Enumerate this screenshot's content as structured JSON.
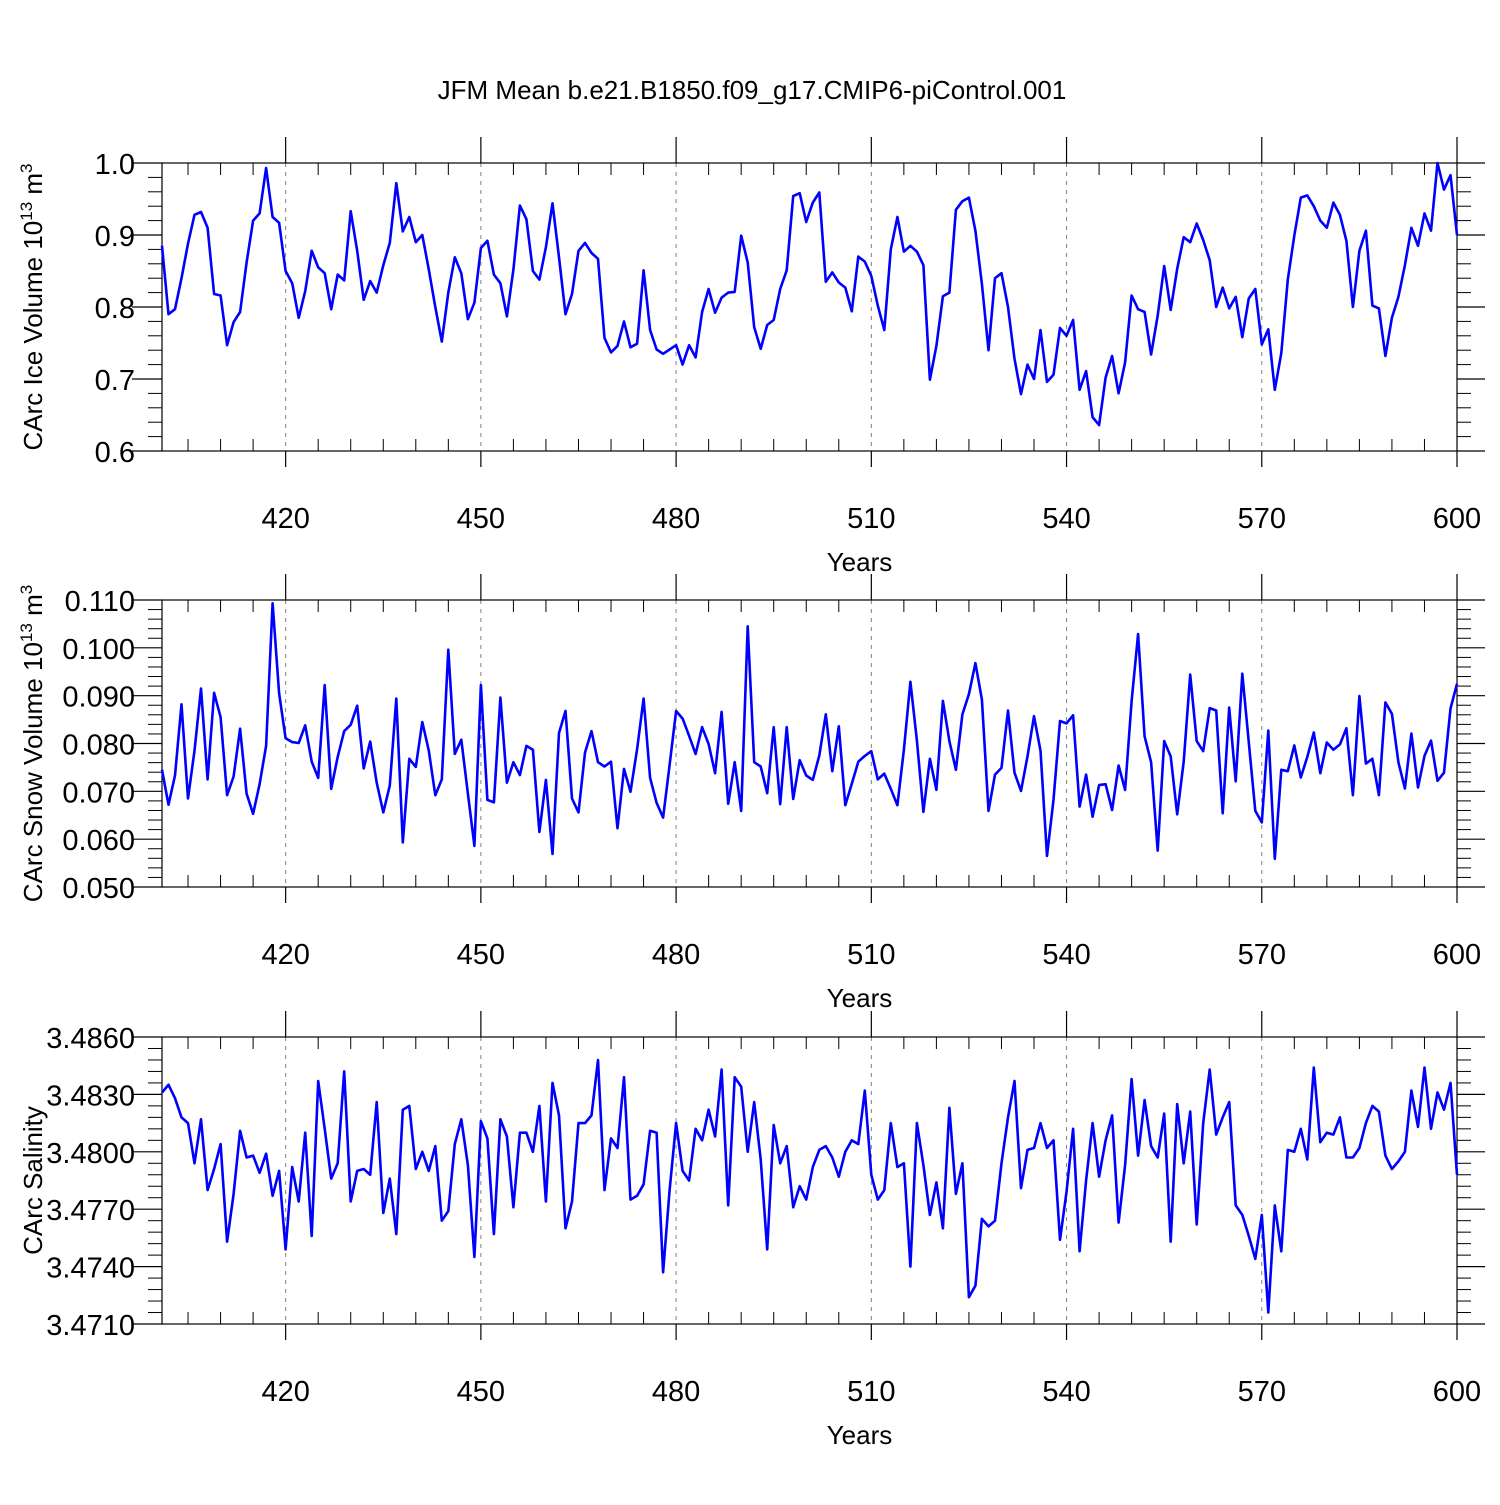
{
  "figure": {
    "title": "JFM Mean b.e21.B1850.f09_g17.CMIP6-piControl.001"
  },
  "style": {
    "line_color": "#0000ff",
    "axis_color": "#000000",
    "grid_color": "#808080"
  },
  "chart_data": [
    {
      "type": "line",
      "title": "",
      "xlabel": "Years",
      "ylabel": "CArc Ice Volume 10",
      "ylabel_sup": "13",
      "ylabel_units": " m",
      "ylabel_units_sup": "3",
      "xlim": [
        401,
        600
      ],
      "xticks": [
        420,
        450,
        480,
        510,
        540,
        570,
        600
      ],
      "xtick_labels": [
        "420",
        "450",
        "480",
        "510",
        "540",
        "570",
        "600"
      ],
      "ylim": [
        0.6,
        1.0
      ],
      "yticks": [
        0.6,
        0.7,
        0.8,
        0.9,
        1.0
      ],
      "ytick_labels": [
        "0.6",
        "0.7",
        "0.8",
        "0.9",
        "1.0"
      ],
      "grid": "vertical dashed at x ticks",
      "series": [
        {
          "name": "CArc Ice Volume",
          "x_start": 401,
          "x_step": 1,
          "values": [
            0.885,
            0.79,
            0.797,
            0.84,
            0.888,
            0.928,
            0.932,
            0.91,
            0.818,
            0.816,
            0.747,
            0.779,
            0.793,
            0.862,
            0.92,
            0.93,
            0.993,
            0.925,
            0.917,
            0.85,
            0.833,
            0.785,
            0.822,
            0.878,
            0.855,
            0.847,
            0.797,
            0.845,
            0.837,
            0.933,
            0.878,
            0.81,
            0.836,
            0.82,
            0.858,
            0.889,
            0.972,
            0.905,
            0.925,
            0.89,
            0.9,
            0.852,
            0.8,
            0.752,
            0.82,
            0.869,
            0.847,
            0.783,
            0.806,
            0.882,
            0.892,
            0.845,
            0.833,
            0.787,
            0.852,
            0.941,
            0.922,
            0.85,
            0.838,
            0.883,
            0.944,
            0.869,
            0.79,
            0.818,
            0.878,
            0.889,
            0.875,
            0.867,
            0.757,
            0.737,
            0.746,
            0.78,
            0.744,
            0.749,
            0.851,
            0.768,
            0.741,
            0.735,
            0.741,
            0.747,
            0.72,
            0.747,
            0.73,
            0.793,
            0.825,
            0.792,
            0.813,
            0.82,
            0.821,
            0.899,
            0.862,
            0.772,
            0.742,
            0.775,
            0.782,
            0.825,
            0.851,
            0.954,
            0.958,
            0.918,
            0.945,
            0.959,
            0.835,
            0.848,
            0.834,
            0.827,
            0.794,
            0.87,
            0.863,
            0.843,
            0.802,
            0.768,
            0.88,
            0.925,
            0.877,
            0.885,
            0.877,
            0.858,
            0.699,
            0.746,
            0.815,
            0.82,
            0.935,
            0.947,
            0.952,
            0.906,
            0.832,
            0.74,
            0.84,
            0.847,
            0.8,
            0.728,
            0.679,
            0.72,
            0.7,
            0.768,
            0.696,
            0.706,
            0.771,
            0.76,
            0.782,
            0.685,
            0.711,
            0.647,
            0.636,
            0.702,
            0.732,
            0.68,
            0.723,
            0.816,
            0.797,
            0.793,
            0.734,
            0.788,
            0.857,
            0.796,
            0.853,
            0.897,
            0.89,
            0.916,
            0.893,
            0.865,
            0.8,
            0.827,
            0.798,
            0.814,
            0.758,
            0.812,
            0.825,
            0.748,
            0.769,
            0.685,
            0.736,
            0.838,
            0.899,
            0.952,
            0.955,
            0.94,
            0.92,
            0.91,
            0.945,
            0.928,
            0.892,
            0.8,
            0.878,
            0.906,
            0.802,
            0.798,
            0.732,
            0.785,
            0.814,
            0.858,
            0.91,
            0.885,
            0.93,
            0.906,
            1.0,
            0.963,
            0.983,
            0.9
          ]
        }
      ]
    },
    {
      "type": "line",
      "title": "",
      "xlabel": "Years",
      "ylabel": "CArc Snow Volume 10",
      "ylabel_sup": "13",
      "ylabel_units": " m",
      "ylabel_units_sup": "3",
      "xlim": [
        401,
        600
      ],
      "xticks": [
        420,
        450,
        480,
        510,
        540,
        570,
        600
      ],
      "xtick_labels": [
        "420",
        "450",
        "480",
        "510",
        "540",
        "570",
        "600"
      ],
      "ylim": [
        0.05,
        0.11
      ],
      "yticks": [
        0.05,
        0.06,
        0.07,
        0.08,
        0.09,
        0.1,
        0.11
      ],
      "ytick_labels": [
        "0.050",
        "0.060",
        "0.070",
        "0.080",
        "0.090",
        "0.100",
        "0.110"
      ],
      "grid": "vertical dashed at x ticks",
      "series": [
        {
          "name": "CArc Snow Volume",
          "x_start": 401,
          "x_step": 1,
          "values": [
            0.0745,
            0.0672,
            0.0733,
            0.0882,
            0.0685,
            0.0785,
            0.0915,
            0.0725,
            0.0906,
            0.0855,
            0.0692,
            0.0731,
            0.0831,
            0.0695,
            0.0653,
            0.0715,
            0.0795,
            0.1093,
            0.0905,
            0.0811,
            0.0803,
            0.0801,
            0.0838,
            0.0762,
            0.0728,
            0.0922,
            0.0705,
            0.0772,
            0.0826,
            0.0839,
            0.0879,
            0.0748,
            0.0804,
            0.0718,
            0.0656,
            0.0712,
            0.0894,
            0.0593,
            0.0768,
            0.0751,
            0.0845,
            0.0785,
            0.0692,
            0.0725,
            0.0996,
            0.0778,
            0.0808,
            0.0695,
            0.0586,
            0.0922,
            0.0682,
            0.0677,
            0.0896,
            0.0718,
            0.0761,
            0.0734,
            0.0795,
            0.0787,
            0.0615,
            0.0724,
            0.0569,
            0.0822,
            0.0868,
            0.0685,
            0.0656,
            0.0781,
            0.0826,
            0.0761,
            0.0752,
            0.0762,
            0.0623,
            0.0747,
            0.0699,
            0.0788,
            0.0894,
            0.0728,
            0.0676,
            0.0645,
            0.0755,
            0.0868,
            0.0852,
            0.0816,
            0.0778,
            0.0834,
            0.0799,
            0.0738,
            0.0866,
            0.0674,
            0.0761,
            0.0659,
            0.1045,
            0.0761,
            0.0752,
            0.0696,
            0.0834,
            0.0673,
            0.0834,
            0.0684,
            0.0765,
            0.0733,
            0.0724,
            0.0775,
            0.0861,
            0.0742,
            0.0836,
            0.0671,
            0.0716,
            0.0762,
            0.0774,
            0.0784,
            0.0725,
            0.0737,
            0.0705,
            0.0671,
            0.0787,
            0.0929,
            0.0806,
            0.0657,
            0.0768,
            0.0703,
            0.0889,
            0.0805,
            0.0745,
            0.0861,
            0.0903,
            0.0968,
            0.0892,
            0.0659,
            0.0735,
            0.0749,
            0.0869,
            0.0739,
            0.0701,
            0.0773,
            0.0857,
            0.0785,
            0.0565,
            0.0682,
            0.0847,
            0.0842,
            0.0859,
            0.0668,
            0.0735,
            0.0647,
            0.0713,
            0.0715,
            0.0661,
            0.0754,
            0.0703,
            0.0888,
            0.1029,
            0.0815,
            0.0761,
            0.0576,
            0.0805,
            0.0773,
            0.0652,
            0.0762,
            0.0944,
            0.0805,
            0.0784,
            0.0874,
            0.0869,
            0.0654,
            0.0875,
            0.0721,
            0.0946,
            0.0802,
            0.0659,
            0.0635,
            0.0827,
            0.0559,
            0.0745,
            0.0742,
            0.0796,
            0.0729,
            0.0772,
            0.0823,
            0.0738,
            0.0802,
            0.0787,
            0.0798,
            0.0832,
            0.0692,
            0.0899,
            0.0758,
            0.0768,
            0.0692,
            0.0886,
            0.0862,
            0.0761,
            0.0706,
            0.0821,
            0.0708,
            0.0774,
            0.0806,
            0.0722,
            0.0739,
            0.0873,
            0.0925
          ]
        }
      ]
    },
    {
      "type": "line",
      "title": "",
      "xlabel": "Years",
      "ylabel": "CArc Salinity",
      "ylabel_sup": "",
      "ylabel_units": "",
      "ylabel_units_sup": "",
      "xlim": [
        401,
        600
      ],
      "xticks": [
        420,
        450,
        480,
        510,
        540,
        570,
        600
      ],
      "xtick_labels": [
        "420",
        "450",
        "480",
        "510",
        "540",
        "570",
        "600"
      ],
      "ylim": [
        3.471,
        3.486
      ],
      "yticks": [
        3.471,
        3.474,
        3.477,
        3.48,
        3.483,
        3.486
      ],
      "ytick_labels": [
        "3.4710",
        "3.4740",
        "3.4770",
        "3.4800",
        "3.4830",
        "3.4860"
      ],
      "grid": "vertical dashed at x ticks",
      "series": [
        {
          "name": "CArc Salinity",
          "x_start": 401,
          "x_step": 1,
          "values": [
            3.4831,
            3.4835,
            3.4828,
            3.4818,
            3.4815,
            3.4794,
            3.4817,
            3.478,
            3.4791,
            3.4804,
            3.4753,
            3.4778,
            3.4811,
            3.4797,
            3.4798,
            3.4789,
            3.4799,
            3.4777,
            3.479,
            3.4749,
            3.4792,
            3.4774,
            3.481,
            3.4756,
            3.4837,
            3.4812,
            3.4786,
            3.4794,
            3.4842,
            3.4774,
            3.479,
            3.4791,
            3.4788,
            3.4826,
            3.4768,
            3.4786,
            3.4757,
            3.4822,
            3.4824,
            3.4791,
            3.48,
            3.479,
            3.4803,
            3.4764,
            3.4769,
            3.4804,
            3.4817,
            3.4793,
            3.4745,
            3.4816,
            3.4807,
            3.4757,
            3.4817,
            3.4808,
            3.4771,
            3.481,
            3.481,
            3.48,
            3.4824,
            3.4774,
            3.4836,
            3.4819,
            3.476,
            3.4774,
            3.4815,
            3.4815,
            3.4819,
            3.4848,
            3.478,
            3.4807,
            3.4802,
            3.4839,
            3.4775,
            3.4777,
            3.4783,
            3.4811,
            3.481,
            3.4737,
            3.478,
            3.4815,
            3.479,
            3.4785,
            3.4812,
            3.4806,
            3.4822,
            3.4808,
            3.4843,
            3.4772,
            3.4839,
            3.4834,
            3.48,
            3.4826,
            3.4796,
            3.4749,
            3.4814,
            3.4794,
            3.4803,
            3.4771,
            3.4782,
            3.4775,
            3.4792,
            3.4801,
            3.4803,
            3.4797,
            3.4787,
            3.48,
            3.4806,
            3.4804,
            3.4832,
            3.4788,
            3.4775,
            3.478,
            3.4815,
            3.4792,
            3.4794,
            3.474,
            3.4815,
            3.4793,
            3.4767,
            3.4784,
            3.476,
            3.4823,
            3.4778,
            3.4794,
            3.4724,
            3.473,
            3.4765,
            3.4761,
            3.4764,
            3.4794,
            3.4818,
            3.4837,
            3.4781,
            3.4801,
            3.4802,
            3.4815,
            3.4802,
            3.4806,
            3.4754,
            3.4779,
            3.4812,
            3.4748,
            3.4785,
            3.4815,
            3.4787,
            3.4806,
            3.4819,
            3.4763,
            3.4793,
            3.4838,
            3.4798,
            3.4827,
            3.4803,
            3.4797,
            3.482,
            3.4753,
            3.4825,
            3.4794,
            3.4821,
            3.4762,
            3.4815,
            3.4843,
            3.4809,
            3.4818,
            3.4826,
            3.4772,
            3.4767,
            3.4756,
            3.4744,
            3.4767,
            3.4716,
            3.4772,
            3.4748,
            3.4801,
            3.48,
            3.4812,
            3.4796,
            3.4844,
            3.4805,
            3.481,
            3.4809,
            3.4818,
            3.4797,
            3.4797,
            3.4802,
            3.4815,
            3.4824,
            3.4821,
            3.4798,
            3.4791,
            3.4795,
            3.48,
            3.4832,
            3.4813,
            3.4844,
            3.4812,
            3.4831,
            3.4822,
            3.4836,
            3.4788
          ]
        }
      ]
    }
  ]
}
